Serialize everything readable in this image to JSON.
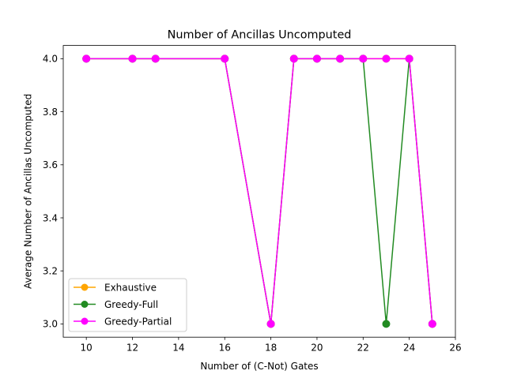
{
  "chart_data": {
    "type": "line",
    "title": "Number of Ancillas Uncomputed",
    "xlabel": "Number of (C-Not) Gates",
    "ylabel": "Average Number of Ancillas Uncomputed",
    "xlim": [
      9,
      26
    ],
    "ylim": [
      2.95,
      4.05
    ],
    "xticks": [
      10,
      12,
      14,
      16,
      18,
      20,
      22,
      24,
      26
    ],
    "xtick_labels": [
      "10",
      "12",
      "14",
      "16",
      "18",
      "20",
      "22",
      "24",
      "26"
    ],
    "yticks": [
      3.0,
      3.2,
      3.4,
      3.6,
      3.8,
      4.0
    ],
    "ytick_labels": [
      "3.0",
      "3.2",
      "3.4",
      "3.6",
      "3.8",
      "4.0"
    ],
    "grid": false,
    "legend_position": "lower-left",
    "series": [
      {
        "name": "Exhaustive",
        "color": "#ffa500",
        "marker": "circle",
        "x": [
          10,
          12,
          13,
          16,
          18,
          19,
          20,
          21,
          22,
          23,
          24,
          25
        ],
        "y": [
          4.0,
          4.0,
          4.0,
          4.0,
          3.0,
          4.0,
          4.0,
          4.0,
          4.0,
          4.0,
          4.0,
          3.0
        ]
      },
      {
        "name": "Greedy-Full",
        "color": "#228b22",
        "marker": "circle",
        "x": [
          10,
          12,
          13,
          16,
          18,
          19,
          20,
          21,
          22,
          23,
          24,
          25
        ],
        "y": [
          4.0,
          4.0,
          4.0,
          4.0,
          3.0,
          4.0,
          4.0,
          4.0,
          4.0,
          3.0,
          4.0,
          3.0
        ]
      },
      {
        "name": "Greedy-Partial",
        "color": "#ff00ff",
        "marker": "circle",
        "x": [
          10,
          12,
          13,
          16,
          18,
          19,
          20,
          21,
          22,
          23,
          24,
          25
        ],
        "y": [
          4.0,
          4.0,
          4.0,
          4.0,
          3.0,
          4.0,
          4.0,
          4.0,
          4.0,
          4.0,
          4.0,
          3.0
        ]
      }
    ]
  }
}
